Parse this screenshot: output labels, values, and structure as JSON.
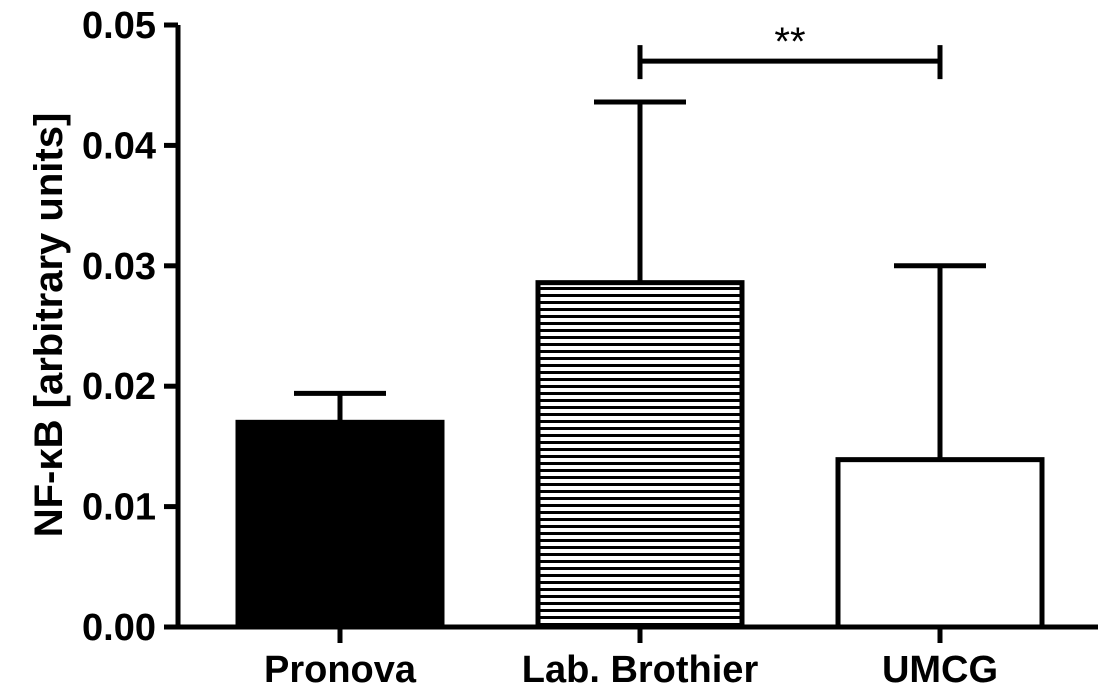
{
  "chart_data": {
    "type": "bar",
    "title": "",
    "xlabel": "",
    "ylabel": "NF-κB [arbitrary units]",
    "ylim": [
      0,
      0.05
    ],
    "yticks": [
      "0.00",
      "0.01",
      "0.02",
      "0.03",
      "0.04",
      "0.05"
    ],
    "categories": [
      "Pronova",
      "Lab. Brothier",
      "UMCG"
    ],
    "values": [
      0.017,
      0.0286,
      0.0139
    ],
    "error_upper": [
      0.0194,
      0.0436,
      0.03
    ],
    "fills": [
      "solid-black",
      "horizontal-stripes",
      "white"
    ],
    "colors": {
      "bar_edge": "#000000",
      "solid": "#000000",
      "open": "#ffffff"
    },
    "significance": {
      "from": "Lab. Brothier",
      "to": "UMCG",
      "y": 0.047,
      "label": "**"
    },
    "grid": false,
    "legend": "none"
  }
}
